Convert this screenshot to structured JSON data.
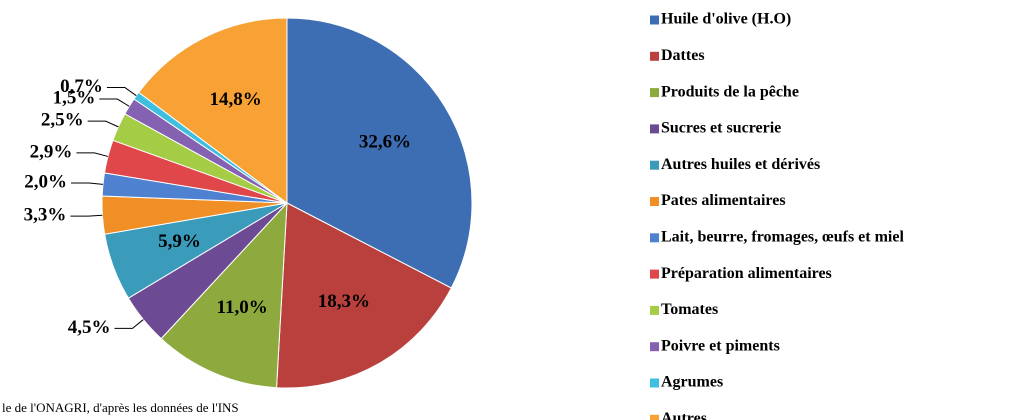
{
  "chart_data": {
    "type": "pie",
    "categories": [
      "Huile d'olive (H.O)",
      "Dattes",
      "Produits de la pêche",
      "Sucres et sucrerie",
      "Autres huiles et dérivés",
      "Pates alimentaires",
      "Lait, beurre, fromages, œufs et miel",
      "Préparation alimentaires",
      "Tomates",
      "Poivre et piments",
      "Agrumes",
      "Autres"
    ],
    "values": [
      32.6,
      18.3,
      11.0,
      4.5,
      5.9,
      3.3,
      2.0,
      2.9,
      2.5,
      1.5,
      0.7,
      14.8
    ],
    "value_labels": [
      "32,6%",
      "18,3%",
      "11,0%",
      "4,5%",
      "5,9%",
      "3,3%",
      "2,0%",
      "2,9%",
      "2,5%",
      "1,5%",
      "0,7%",
      "14,8%"
    ],
    "colors": [
      "#3d6eb3",
      "#b9403c",
      "#8eaa3e",
      "#6c4b94",
      "#3a9bbb",
      "#ef8f26",
      "#4e82d0",
      "#e0474a",
      "#a5cc45",
      "#8562b1",
      "#3fbfe0",
      "#f8a235"
    ],
    "source": "le de l'ONAGRI, d'après les données de l'INS"
  }
}
